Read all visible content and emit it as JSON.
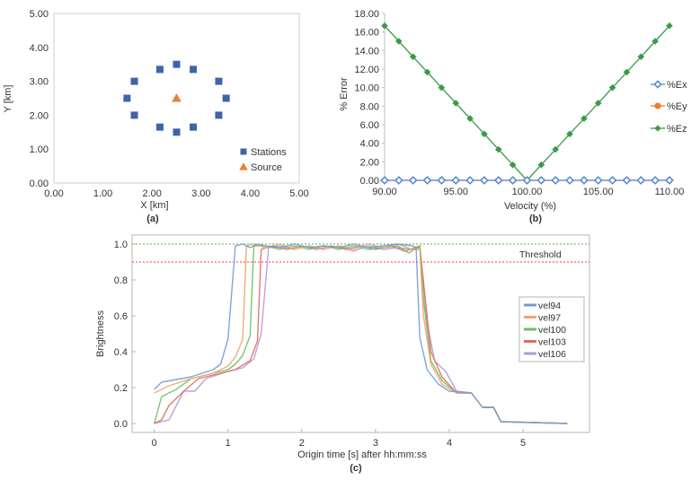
{
  "figure_labels": {
    "a": "(a)",
    "b": "(b)",
    "c": "(c)"
  },
  "chart_data": [
    {
      "panel": "a",
      "type": "scatter",
      "xlabel": "X [km]",
      "ylabel": "Y [km]",
      "xlim": [
        0,
        5
      ],
      "ylim": [
        0,
        5
      ],
      "xticks": [
        "0.00",
        "1.00",
        "2.00",
        "3.00",
        "4.00",
        "5.00"
      ],
      "yticks": [
        "0.00",
        "1.00",
        "2.00",
        "3.00",
        "4.00",
        "5.00"
      ],
      "grid": false,
      "legend": "bottom-right",
      "series": [
        {
          "name": "Stations",
          "marker": "square",
          "color": "#3f64a8",
          "x": [
            2.5,
            2.84,
            3.36,
            3.51,
            3.36,
            2.84,
            2.5,
            2.16,
            1.64,
            1.49,
            1.64,
            2.16
          ],
          "y": [
            3.5,
            3.35,
            3.0,
            2.5,
            2.0,
            1.65,
            1.5,
            1.65,
            2.0,
            2.5,
            3.0,
            3.35
          ]
        },
        {
          "name": "Source",
          "marker": "triangle",
          "color": "#e8813a",
          "x": [
            2.5
          ],
          "y": [
            2.5
          ]
        }
      ]
    },
    {
      "panel": "b",
      "type": "line",
      "xlabel": "Velocity (%)",
      "ylabel": "% Error",
      "xlim": [
        90,
        110
      ],
      "ylim": [
        0,
        18
      ],
      "xticks": [
        "90.00",
        "95.00",
        "100.00",
        "105.00",
        "110.00"
      ],
      "yticks": [
        "0.00",
        "2.00",
        "4.00",
        "6.00",
        "8.00",
        "10.00",
        "12.00",
        "14.00",
        "16.00",
        "18.00"
      ],
      "grid": false,
      "legend": "right",
      "x": [
        90,
        91,
        92,
        93,
        94,
        95,
        96,
        97,
        98,
        99,
        100,
        101,
        102,
        103,
        104,
        105,
        106,
        107,
        108,
        109,
        110
      ],
      "series": [
        {
          "name": "%Ex",
          "marker": "diamond-open",
          "color": "#5b8bd0",
          "values": [
            0,
            0,
            0,
            0,
            0,
            0,
            0,
            0,
            0,
            0,
            0,
            0,
            0,
            0,
            0,
            0,
            0,
            0,
            0,
            0,
            0
          ]
        },
        {
          "name": "%Ey",
          "marker": "circle",
          "color": "#ee7d31",
          "values": [
            0,
            0,
            0,
            0,
            0,
            0,
            0,
            0,
            0,
            0,
            0,
            0,
            0,
            0,
            0,
            0,
            0,
            0,
            0,
            0,
            0
          ]
        },
        {
          "name": "%Ez",
          "marker": "diamond",
          "color": "#3a9a48",
          "values": [
            16.67,
            15.0,
            13.33,
            11.67,
            10.0,
            8.33,
            6.67,
            5.0,
            3.33,
            1.67,
            0,
            1.67,
            3.33,
            5.0,
            6.67,
            8.33,
            10.0,
            11.67,
            13.33,
            15.0,
            16.67
          ]
        }
      ]
    },
    {
      "panel": "c",
      "type": "line",
      "xlabel": "Origin time [s] after hh:mm:ss",
      "ylabel": "Brightness",
      "xlim": [
        -0.3,
        5.9
      ],
      "ylim": [
        -0.05,
        1.05
      ],
      "xticks": [
        "0",
        "1",
        "2",
        "3",
        "4",
        "5"
      ],
      "yticks": [
        "0.0",
        "0.2",
        "0.4",
        "0.6",
        "0.8",
        "1.0"
      ],
      "grid": false,
      "legend": "right",
      "annotations": [
        {
          "text": "Threshold",
          "y": 0.9,
          "color": "#e8412f"
        },
        {
          "y": 1.0,
          "color": "#5bb24a"
        }
      ],
      "series": [
        {
          "name": "vel94",
          "color": "#6f9bd8",
          "points": [
            [
              0,
              0.19
            ],
            [
              0.1,
              0.23
            ],
            [
              0.5,
              0.26
            ],
            [
              0.8,
              0.3
            ],
            [
              0.9,
              0.33
            ],
            [
              1.0,
              0.47
            ],
            [
              1.1,
              0.99
            ],
            [
              1.2,
              1.0
            ],
            [
              1.3,
              0.98
            ],
            [
              1.4,
              1.0
            ],
            [
              1.5,
              0.99
            ],
            [
              1.7,
              0.98
            ],
            [
              1.9,
              1.0
            ],
            [
              2.1,
              0.98
            ],
            [
              2.3,
              0.99
            ],
            [
              2.5,
              0.98
            ],
            [
              2.7,
              1.0
            ],
            [
              2.9,
              0.98
            ],
            [
              3.1,
              0.99
            ],
            [
              3.3,
              1.0
            ],
            [
              3.5,
              0.99
            ],
            [
              3.55,
              0.98
            ],
            [
              3.6,
              0.48
            ],
            [
              3.7,
              0.3
            ],
            [
              3.85,
              0.22
            ],
            [
              4.0,
              0.18
            ],
            [
              4.3,
              0.17
            ],
            [
              4.45,
              0.09
            ],
            [
              4.6,
              0.09
            ],
            [
              4.7,
              0.01
            ],
            [
              5.6,
              0.0
            ]
          ]
        },
        {
          "name": "vel97",
          "color": "#f0a56b",
          "points": [
            [
              0,
              0.17
            ],
            [
              0.1,
              0.19
            ],
            [
              0.2,
              0.21
            ],
            [
              0.5,
              0.25
            ],
            [
              0.8,
              0.28
            ],
            [
              1.0,
              0.32
            ],
            [
              1.1,
              0.37
            ],
            [
              1.2,
              0.47
            ],
            [
              1.25,
              0.99
            ],
            [
              1.35,
              1.0
            ],
            [
              1.5,
              0.98
            ],
            [
              1.7,
              1.0
            ],
            [
              1.9,
              0.97
            ],
            [
              2.1,
              0.99
            ],
            [
              2.3,
              0.97
            ],
            [
              2.5,
              0.99
            ],
            [
              2.7,
              0.97
            ],
            [
              2.9,
              1.0
            ],
            [
              3.1,
              0.98
            ],
            [
              3.3,
              1.0
            ],
            [
              3.5,
              0.97
            ],
            [
              3.6,
              0.97
            ],
            [
              3.65,
              0.6
            ],
            [
              3.75,
              0.33
            ],
            [
              3.9,
              0.22
            ],
            [
              4.1,
              0.17
            ],
            [
              4.3,
              0.17
            ],
            [
              4.45,
              0.09
            ],
            [
              4.6,
              0.09
            ],
            [
              4.7,
              0.01
            ],
            [
              5.6,
              0.0
            ]
          ]
        },
        {
          "name": "vel100",
          "color": "#6cc162",
          "points": [
            [
              0,
              0.0
            ],
            [
              0.1,
              0.15
            ],
            [
              0.3,
              0.19
            ],
            [
              0.5,
              0.25
            ],
            [
              0.8,
              0.28
            ],
            [
              1.0,
              0.3
            ],
            [
              1.1,
              0.33
            ],
            [
              1.2,
              0.38
            ],
            [
              1.3,
              0.49
            ],
            [
              1.35,
              0.99
            ],
            [
              1.5,
              0.99
            ],
            [
              1.7,
              0.97
            ],
            [
              1.9,
              0.99
            ],
            [
              2.1,
              0.97
            ],
            [
              2.3,
              0.99
            ],
            [
              2.5,
              0.97
            ],
            [
              2.7,
              0.99
            ],
            [
              2.9,
              0.97
            ],
            [
              3.1,
              0.98
            ],
            [
              3.3,
              0.99
            ],
            [
              3.45,
              0.95
            ],
            [
              3.6,
              0.99
            ],
            [
              3.65,
              0.69
            ],
            [
              3.75,
              0.35
            ],
            [
              3.9,
              0.24
            ],
            [
              4.1,
              0.17
            ],
            [
              4.3,
              0.17
            ],
            [
              4.45,
              0.09
            ],
            [
              4.6,
              0.09
            ],
            [
              4.7,
              0.01
            ],
            [
              5.6,
              0.0
            ]
          ]
        },
        {
          "name": "vel103",
          "color": "#e16b60",
          "points": [
            [
              0,
              0.0
            ],
            [
              0.1,
              0.02
            ],
            [
              0.2,
              0.1
            ],
            [
              0.4,
              0.18
            ],
            [
              0.6,
              0.25
            ],
            [
              0.9,
              0.28
            ],
            [
              1.1,
              0.3
            ],
            [
              1.3,
              0.35
            ],
            [
              1.4,
              0.46
            ],
            [
              1.45,
              0.97
            ],
            [
              1.6,
              0.99
            ],
            [
              1.8,
              0.97
            ],
            [
              2.0,
              0.99
            ],
            [
              2.2,
              0.97
            ],
            [
              2.4,
              0.99
            ],
            [
              2.6,
              0.97
            ],
            [
              2.8,
              0.99
            ],
            [
              3.0,
              0.97
            ],
            [
              3.2,
              0.99
            ],
            [
              3.4,
              0.96
            ],
            [
              3.6,
              0.99
            ],
            [
              3.65,
              0.79
            ],
            [
              3.75,
              0.4
            ],
            [
              3.9,
              0.26
            ],
            [
              4.1,
              0.17
            ],
            [
              4.3,
              0.17
            ],
            [
              4.45,
              0.09
            ],
            [
              4.6,
              0.09
            ],
            [
              4.7,
              0.01
            ],
            [
              5.6,
              0.0
            ]
          ]
        },
        {
          "name": "vel106",
          "color": "#b39ad8",
          "points": [
            [
              0,
              0.0
            ],
            [
              0.2,
              0.02
            ],
            [
              0.4,
              0.18
            ],
            [
              0.55,
              0.18
            ],
            [
              0.7,
              0.25
            ],
            [
              1.0,
              0.29
            ],
            [
              1.2,
              0.31
            ],
            [
              1.35,
              0.36
            ],
            [
              1.45,
              0.5
            ],
            [
              1.55,
              0.98
            ],
            [
              1.7,
              0.99
            ],
            [
              1.9,
              0.97
            ],
            [
              2.1,
              0.99
            ],
            [
              2.3,
              0.97
            ],
            [
              2.5,
              0.99
            ],
            [
              2.7,
              0.96
            ],
            [
              2.9,
              0.99
            ],
            [
              3.1,
              0.97
            ],
            [
              3.3,
              0.98
            ],
            [
              3.5,
              0.97
            ],
            [
              3.6,
              0.98
            ],
            [
              3.7,
              0.56
            ],
            [
              3.8,
              0.35
            ],
            [
              3.95,
              0.29
            ],
            [
              4.1,
              0.18
            ],
            [
              4.3,
              0.17
            ],
            [
              4.45,
              0.09
            ],
            [
              4.6,
              0.09
            ],
            [
              4.7,
              0.01
            ],
            [
              5.6,
              0.0
            ]
          ]
        }
      ]
    }
  ]
}
